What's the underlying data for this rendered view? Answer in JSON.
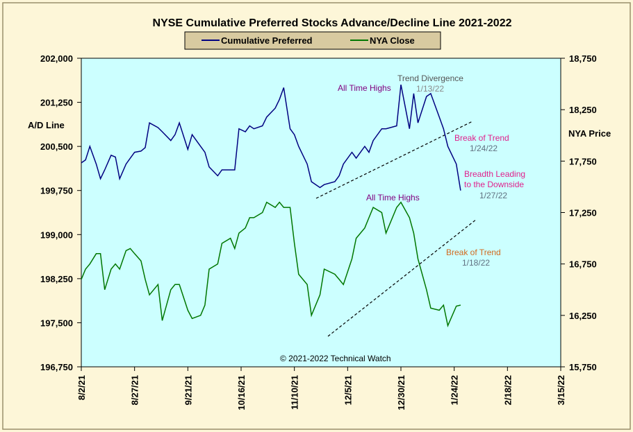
{
  "colors": {
    "background": "#fdf6d8",
    "plot_bg": "#ccffff",
    "series1": "#000080",
    "series2": "#007700",
    "annotation_purple": "#800080",
    "annotation_gray": "#666666",
    "annotation_magenta": "#e0208c",
    "annotation_orange": "#d2691e",
    "annotation_steel": "#607080",
    "legend_bg": "#d8caa0"
  },
  "chart_data": {
    "type": "line",
    "title": "NYSE Cumulative  Preferred Stocks Advance/Decline  Line 2021-2022",
    "ylabel_left": "A/D Line",
    "ylabel_right": "NYA Price",
    "copyright": "© 2021-2022  Technical  Watch",
    "x_range": [
      "2021-08-02",
      "2022-03-15"
    ],
    "x_ticks": [
      "8/2/21",
      "8/27/21",
      "9/21/21",
      "10/16/21",
      "11/10/21",
      "12/5/21",
      "12/30/21",
      "1/24/22",
      "2/18/22",
      "3/15/22"
    ],
    "y_left": {
      "min": 196750,
      "max": 202000,
      "ticks": [
        "196,750",
        "197,500",
        "198,250",
        "199,000",
        "199,750",
        "200,500",
        "201,250",
        "202,000"
      ]
    },
    "y_right": {
      "min": 15750,
      "max": 18750,
      "ticks": [
        "15,750",
        "16,250",
        "16,750",
        "17,250",
        "17,750",
        "18,250",
        "18,750"
      ]
    },
    "legend": [
      "Cumulative Preferred",
      "NYA Close"
    ],
    "series": [
      {
        "name": "Cumulative Preferred",
        "axis": "left",
        "x": [
          "2021-08-02",
          "2021-08-04",
          "2021-08-06",
          "2021-08-09",
          "2021-08-11",
          "2021-08-13",
          "2021-08-16",
          "2021-08-18",
          "2021-08-20",
          "2021-08-23",
          "2021-08-25",
          "2021-08-27",
          "2021-08-30",
          "2021-09-01",
          "2021-09-03",
          "2021-09-07",
          "2021-09-09",
          "2021-09-13",
          "2021-09-15",
          "2021-09-17",
          "2021-09-21",
          "2021-09-23",
          "2021-09-27",
          "2021-09-29",
          "2021-10-01",
          "2021-10-05",
          "2021-10-07",
          "2021-10-11",
          "2021-10-13",
          "2021-10-15",
          "2021-10-18",
          "2021-10-20",
          "2021-10-22",
          "2021-10-26",
          "2021-10-28",
          "2021-11-01",
          "2021-11-03",
          "2021-11-05",
          "2021-11-08",
          "2021-11-10",
          "2021-11-12",
          "2021-11-16",
          "2021-11-18",
          "2021-11-22",
          "2021-11-24",
          "2021-11-29",
          "2021-12-01",
          "2021-12-03",
          "2021-12-07",
          "2021-12-09",
          "2021-12-13",
          "2021-12-15",
          "2021-12-17",
          "2021-12-21",
          "2021-12-23",
          "2021-12-28",
          "2021-12-30",
          "2022-01-03",
          "2022-01-05",
          "2022-01-07",
          "2022-01-11",
          "2022-01-13",
          "2022-01-17",
          "2022-01-19",
          "2022-01-21",
          "2022-01-25",
          "2022-01-27"
        ],
        "values": [
          200220,
          200270,
          200500,
          200200,
          199950,
          200100,
          200350,
          200320,
          199950,
          200200,
          200300,
          200400,
          200420,
          200480,
          200900,
          200820,
          200750,
          200600,
          200700,
          200900,
          200450,
          200700,
          200500,
          200400,
          200150,
          200000,
          200100,
          200100,
          200100,
          200800,
          200750,
          200850,
          200800,
          200850,
          201000,
          201150,
          201300,
          201500,
          200800,
          200700,
          200500,
          200200,
          199900,
          199800,
          199850,
          199900,
          200000,
          200200,
          200400,
          200300,
          200500,
          200400,
          200600,
          200800,
          200800,
          200850,
          201550,
          200800,
          201400,
          200900,
          201350,
          201400,
          201000,
          200800,
          200500,
          200200,
          199750
        ]
      },
      {
        "name": "NYA Close",
        "axis": "right",
        "x": [
          "2021-08-02",
          "2021-08-04",
          "2021-08-06",
          "2021-08-09",
          "2021-08-11",
          "2021-08-13",
          "2021-08-16",
          "2021-08-18",
          "2021-08-20",
          "2021-08-23",
          "2021-08-25",
          "2021-08-27",
          "2021-08-30",
          "2021-09-01",
          "2021-09-03",
          "2021-09-07",
          "2021-09-09",
          "2021-09-13",
          "2021-09-15",
          "2021-09-17",
          "2021-09-21",
          "2021-09-23",
          "2021-09-27",
          "2021-09-29",
          "2021-10-01",
          "2021-10-05",
          "2021-10-07",
          "2021-10-11",
          "2021-10-13",
          "2021-10-15",
          "2021-10-18",
          "2021-10-20",
          "2021-10-22",
          "2021-10-26",
          "2021-10-28",
          "2021-11-01",
          "2021-11-03",
          "2021-11-05",
          "2021-11-08",
          "2021-11-10",
          "2021-11-12",
          "2021-11-16",
          "2021-11-18",
          "2021-11-22",
          "2021-11-24",
          "2021-11-29",
          "2021-12-01",
          "2021-12-03",
          "2021-12-07",
          "2021-12-09",
          "2021-12-13",
          "2021-12-15",
          "2021-12-17",
          "2021-12-21",
          "2021-12-23",
          "2021-12-28",
          "2021-12-30",
          "2022-01-03",
          "2022-01-05",
          "2022-01-07",
          "2022-01-11",
          "2022-01-13",
          "2022-01-17",
          "2022-01-19",
          "2022-01-21",
          "2022-01-25",
          "2022-01-27"
        ],
        "values": [
          16600,
          16700,
          16750,
          16850,
          16850,
          16500,
          16700,
          16750,
          16700,
          16880,
          16900,
          16850,
          16780,
          16600,
          16450,
          16550,
          16200,
          16500,
          16550,
          16550,
          16300,
          16220,
          16250,
          16350,
          16700,
          16750,
          16950,
          17000,
          16900,
          17050,
          17100,
          17200,
          17200,
          17250,
          17350,
          17300,
          17350,
          17300,
          17300,
          16950,
          16650,
          16550,
          16250,
          16450,
          16700,
          16650,
          16600,
          16550,
          16800,
          17000,
          17100,
          17200,
          17300,
          17250,
          17050,
          17300,
          17350,
          17200,
          17050,
          16800,
          16500,
          16320,
          16300,
          16350,
          16150,
          16340,
          16350
        ]
      }
    ],
    "annotations": [
      {
        "text": "All Time Highs",
        "date": "",
        "color": "#800080"
      },
      {
        "text": "Trend  Divergence",
        "date": "1/13/22",
        "color": "#666666"
      },
      {
        "text": "Break of Trend",
        "date": "1/24/22",
        "color": "#e0208c"
      },
      {
        "text": "Breadth Leading",
        "text2": "to the Downside",
        "date": "1/27/22",
        "color": "#e0208c"
      },
      {
        "text": "All Time Highs",
        "date": "",
        "color": "#800080"
      },
      {
        "text": "Break of Trend",
        "date": "1/18/22",
        "color": "#d2691e"
      }
    ]
  }
}
